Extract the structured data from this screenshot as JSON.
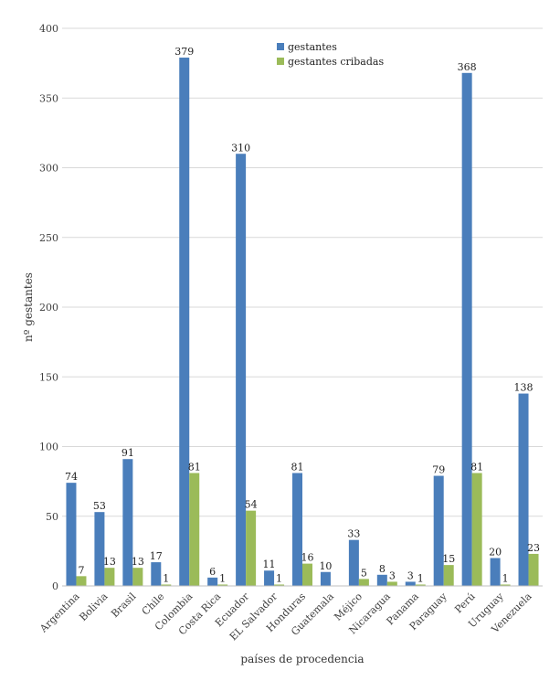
{
  "chart_data": {
    "type": "bar",
    "title": "",
    "xlabel": "países de procedencia",
    "ylabel": "nº gestantes",
    "ylim": [
      0,
      400
    ],
    "yticks": [
      0,
      50,
      100,
      150,
      200,
      250,
      300,
      350,
      400
    ],
    "grid": true,
    "legend_position": "top-center",
    "categories": [
      "Argentina",
      "Bolivia",
      "Brasil",
      "Chile",
      "Colombia",
      "Costa Rica",
      "Ecuador",
      "EL Salvador",
      "Honduras",
      "Guatemala",
      "Méjico",
      "Nicaragua",
      "Panama",
      "Paraguay",
      "Perú",
      "Uruguay",
      "Venezuela"
    ],
    "series": [
      {
        "name": "gestantes",
        "color": "#4a7ebb",
        "values": [
          74,
          53,
          91,
          17,
          379,
          6,
          310,
          11,
          81,
          10,
          33,
          8,
          3,
          79,
          368,
          20,
          138
        ],
        "labels": [
          "74",
          "53",
          "91",
          "17",
          "379",
          "6",
          "310",
          "11",
          "81",
          "10",
          "33",
          "8",
          "3",
          "79",
          "368",
          "20",
          "138"
        ]
      },
      {
        "name": "gestantes cribadas",
        "color": "#9bbb59",
        "values": [
          7,
          13,
          13,
          1,
          81,
          1,
          54,
          1,
          16,
          0,
          5,
          3,
          1,
          15,
          81,
          1,
          23
        ],
        "labels": [
          "7",
          "13",
          "13",
          "1",
          "81",
          "1",
          "54",
          "1",
          "16",
          "",
          "5",
          "3",
          "1",
          "15",
          "81",
          "1",
          "23"
        ]
      }
    ]
  }
}
